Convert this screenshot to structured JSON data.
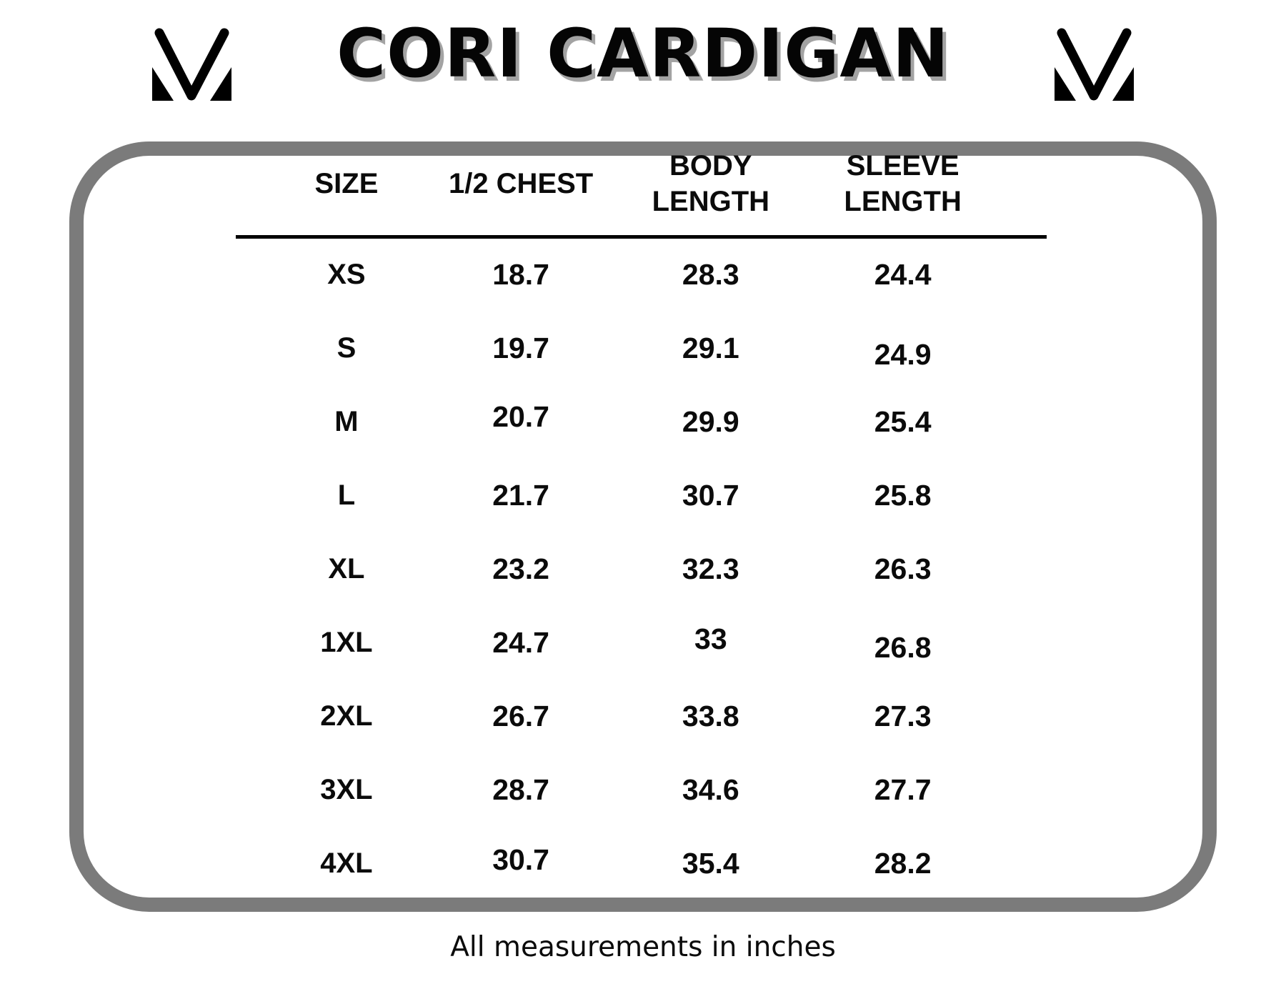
{
  "header": {
    "title": "CORI CARDIGAN",
    "logo": "mv-monogram"
  },
  "size_chart": {
    "columns": [
      "SIZE",
      "1/2 CHEST",
      "BODY LENGTH",
      "SLEEVE LENGTH"
    ],
    "rows": [
      [
        "XS",
        "18.7",
        "28.3",
        "24.4"
      ],
      [
        "S",
        "19.7",
        "29.1",
        "24.9"
      ],
      [
        "M",
        "20.7",
        "29.9",
        "25.4"
      ],
      [
        "L",
        "21.7",
        "30.7",
        "25.8"
      ],
      [
        "XL",
        "23.2",
        "32.3",
        "26.3"
      ],
      [
        "1XL",
        "24.7",
        "33",
        "26.8"
      ],
      [
        "2XL",
        "26.7",
        "33.8",
        "27.3"
      ],
      [
        "3XL",
        "28.7",
        "34.6",
        "27.7"
      ],
      [
        "4XL",
        "30.7",
        "35.4",
        "28.2"
      ]
    ]
  },
  "footer": {
    "note": "All measurements in inches"
  },
  "colors": {
    "background": "#ffffff",
    "frame_gray": "#7b7b7b",
    "text_black": "#0b0b0b",
    "title_shadow_gray": "#a3a3a3"
  }
}
